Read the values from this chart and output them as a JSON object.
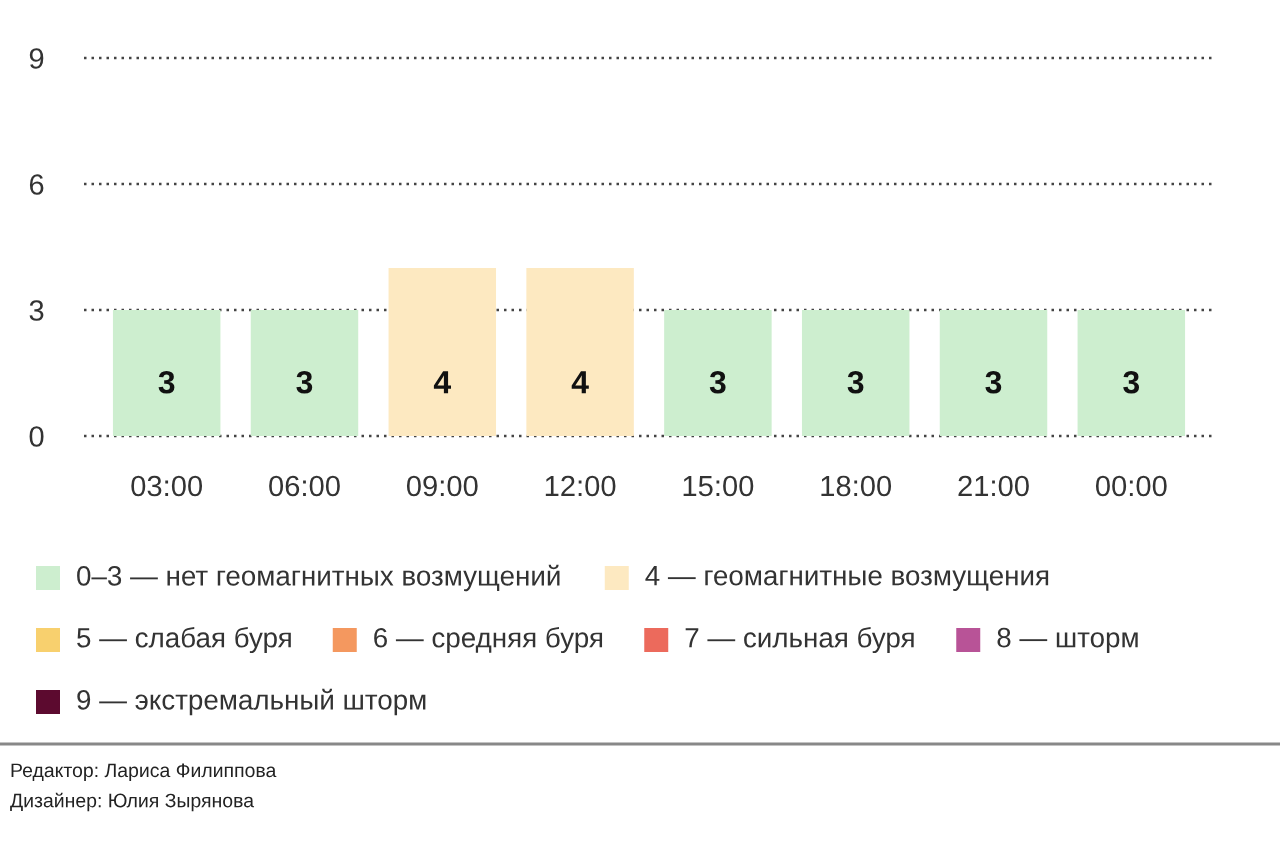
{
  "chart_data": {
    "type": "bar",
    "categories": [
      "03:00",
      "06:00",
      "09:00",
      "12:00",
      "15:00",
      "18:00",
      "21:00",
      "00:00"
    ],
    "series": [
      {
        "name": "0–3 — нет геомагнитных возмущений",
        "color": "#cdeecf",
        "values": [
          3,
          3,
          null,
          null,
          3,
          3,
          3,
          3
        ]
      },
      {
        "name": "4 — геомагнитные возмущения",
        "color": "#fde9c1",
        "values": [
          null,
          null,
          4,
          4,
          null,
          null,
          null,
          null
        ]
      },
      {
        "name": "5 — слабая буря",
        "color": "#f8d06e",
        "values": [
          null,
          null,
          null,
          null,
          null,
          null,
          null,
          null
        ]
      },
      {
        "name": "6 — средняя буря",
        "color": "#f4985f",
        "values": [
          null,
          null,
          null,
          null,
          null,
          null,
          null,
          null
        ]
      },
      {
        "name": "7 — сильная буря",
        "color": "#ec6a5c",
        "values": [
          null,
          null,
          null,
          null,
          null,
          null,
          null,
          null
        ]
      },
      {
        "name": "8 — шторм",
        "color": "#b85397",
        "values": [
          null,
          null,
          null,
          null,
          null,
          null,
          null,
          null
        ]
      },
      {
        "name": "9 — экстремальный шторм",
        "color": "#5c0a2f",
        "values": [
          null,
          null,
          null,
          null,
          null,
          null,
          null,
          null
        ]
      }
    ],
    "stacked": true,
    "ylim": [
      0,
      9
    ],
    "yticks": [
      0,
      3,
      6,
      9
    ],
    "grid": "y",
    "data_labels": true,
    "legend": "bottom",
    "annotations": [
      "Редактор: Лариса Филиппова",
      "Дизайнер: Юлия Зырянова"
    ]
  }
}
